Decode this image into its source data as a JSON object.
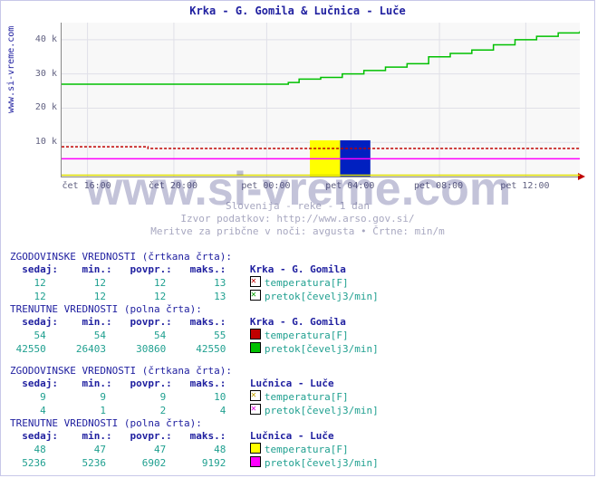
{
  "title": "Krka - G. Gomila & Lučnica - Luče",
  "ylabel": "www.si-vreme.com",
  "watermark": "www.si-vreme.com",
  "subtext1": "Slovenija - reke - 1 dan",
  "subtext2": "Izvor podatkov: http://www.arso.gov.si/",
  "subtext3": "Meritve za pribčne v noči: avgusta • Črtne: min/m",
  "chart": {
    "type": "line-step",
    "background_color": "#f8f8f8",
    "grid_color": "#e0e0e8",
    "xlim": [
      0,
      24
    ],
    "ylim": [
      0,
      45000
    ],
    "yticks": [
      {
        "v": 10000,
        "label": "10 k"
      },
      {
        "v": 20000,
        "label": "20 k"
      },
      {
        "v": 30000,
        "label": "30 k"
      },
      {
        "v": 40000,
        "label": "40 k"
      }
    ],
    "xticks": [
      {
        "v": 1.2,
        "label": "čet 16:00"
      },
      {
        "v": 5.2,
        "label": "čet 20:00"
      },
      {
        "v": 9.5,
        "label": "pet 00:00"
      },
      {
        "v": 13.4,
        "label": "pet 04:00"
      },
      {
        "v": 17.5,
        "label": "pet 08:00"
      },
      {
        "v": 21.5,
        "label": "pet 12:00"
      }
    ],
    "series": {
      "green_step": {
        "color": "#00c000",
        "points": [
          [
            0,
            27000
          ],
          [
            10,
            27000
          ],
          [
            10.5,
            27500
          ],
          [
            11,
            28500
          ],
          [
            12,
            29000
          ],
          [
            13,
            30000
          ],
          [
            14,
            31000
          ],
          [
            15,
            32000
          ],
          [
            16,
            33000
          ],
          [
            17,
            35000
          ],
          [
            18,
            36000
          ],
          [
            19,
            37000
          ],
          [
            20,
            38500
          ],
          [
            21,
            40000
          ],
          [
            22,
            41000
          ],
          [
            23,
            42000
          ],
          [
            24,
            42500
          ]
        ]
      },
      "red_dash": {
        "color": "#c00000",
        "dash": true,
        "points": [
          [
            0,
            8700
          ],
          [
            4,
            8700
          ],
          [
            4,
            8200
          ],
          [
            24,
            8200
          ]
        ]
      },
      "magenta": {
        "color": "#ff00ff",
        "points": [
          [
            0,
            5200
          ],
          [
            24,
            5200
          ]
        ]
      },
      "yellow": {
        "color": "#dddd00",
        "points": [
          [
            0,
            400
          ],
          [
            24,
            400
          ]
        ]
      }
    },
    "flags": [
      {
        "x": 11.5,
        "w": 1.4,
        "color": "#ffff00"
      },
      {
        "x": 12.9,
        "w": 1.4,
        "color": "#0020c0"
      }
    ]
  },
  "sections": [
    {
      "hist_header": "ZGODOVINSKE VREDNOSTI (črtkana črta):",
      "cols": "  sedaj:    min.:   povpr.:   maks.:",
      "station": "Krka - G. Gomila",
      "hist_rows": [
        {
          "sedaj": "12",
          "min": "12",
          "povpr": "12",
          "maks": "13",
          "marker": "sq-red-x",
          "label": "temperatura[F]"
        },
        {
          "sedaj": "12",
          "min": "12",
          "povpr": "12",
          "maks": "13",
          "marker": "sq-green-x",
          "label": "pretok[čevelj3/min]"
        }
      ],
      "curr_header": "TRENUTNE VREDNOSTI (polna črta):",
      "curr_rows": [
        {
          "sedaj": "54",
          "min": "54",
          "povpr": "54",
          "maks": "55",
          "marker": "sq-red",
          "label": "temperatura[F]"
        },
        {
          "sedaj": "42550",
          "min": "26403",
          "povpr": "30860",
          "maks": "42550",
          "marker": "sq-green",
          "label": "pretok[čevelj3/min]"
        }
      ]
    },
    {
      "hist_header": "ZGODOVINSKE VREDNOSTI (črtkana črta):",
      "cols": "  sedaj:    min.:   povpr.:   maks.:",
      "station": "Lučnica - Luče",
      "hist_rows": [
        {
          "sedaj": "9",
          "min": "9",
          "povpr": "9",
          "maks": "10",
          "marker": "sq-yel-x",
          "label": "temperatura[F]"
        },
        {
          "sedaj": "4",
          "min": "1",
          "povpr": "2",
          "maks": "4",
          "marker": "sq-mag-x",
          "label": "pretok[čevelj3/min]"
        }
      ],
      "curr_header": "TRENUTNE VREDNOSTI (polna črta):",
      "curr_rows": [
        {
          "sedaj": "48",
          "min": "47",
          "povpr": "47",
          "maks": "48",
          "marker": "sq-yel",
          "label": "temperatura[F]"
        },
        {
          "sedaj": "5236",
          "min": "5236",
          "povpr": "6902",
          "maks": "9192",
          "marker": "sq-mag",
          "label": "pretok[čevelj3/min]"
        }
      ]
    }
  ]
}
